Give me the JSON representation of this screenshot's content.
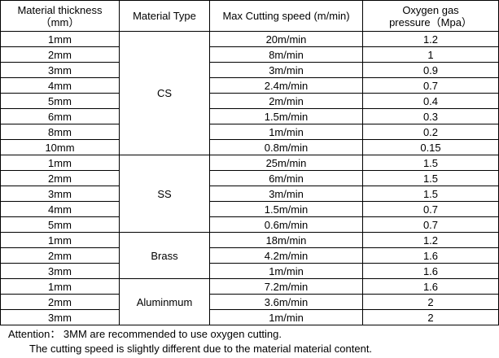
{
  "header": [
    [
      "Material thickness",
      "（mm）"
    ],
    [
      "Material  Type"
    ],
    [
      "Max Cutting speed (m/min)"
    ],
    [
      "Oxygen gas",
      "pressure（Mpa）"
    ]
  ],
  "table": {
    "groups": [
      {
        "material": "CS",
        "rows": [
          [
            "1mm",
            "20m/min",
            "1.2"
          ],
          [
            "2mm",
            "8m/min",
            "1"
          ],
          [
            "3mm",
            "3m/min",
            "0.9"
          ],
          [
            "4mm",
            "2.4m/min",
            "0.7"
          ],
          [
            "5mm",
            "2m/min",
            "0.4"
          ],
          [
            "6mm",
            "1.5m/min",
            "0.3"
          ],
          [
            "8mm",
            "1m/min",
            "0.2"
          ],
          [
            "10mm",
            "0.8m/min",
            "0.15"
          ]
        ]
      },
      {
        "material": "SS",
        "rows": [
          [
            "1mm",
            "25m/min",
            "1.5"
          ],
          [
            "2mm",
            "6m/min",
            "1.5"
          ],
          [
            "3mm",
            "3m/min",
            "1.5"
          ],
          [
            "4mm",
            "1.5m/min",
            "0.7"
          ],
          [
            "5mm",
            "0.6m/min",
            "0.7"
          ]
        ]
      },
      {
        "material": "Brass",
        "rows": [
          [
            "1mm",
            "18m/min",
            "1.2"
          ],
          [
            "2mm",
            "4.2m/min",
            "1.6"
          ],
          [
            "3mm",
            "1m/min",
            "1.6"
          ]
        ]
      },
      {
        "material": "Aluminmum",
        "rows": [
          [
            "1mm",
            "7.2m/min",
            "1.6"
          ],
          [
            "2mm",
            "3.6m/min",
            "2"
          ],
          [
            "3mm",
            "1m/min",
            "2"
          ]
        ]
      }
    ]
  },
  "notes": [
    "Attention：  3MM are recommended to use oxygen cutting.",
    "The cutting speed is slightly different due to the material material content."
  ]
}
